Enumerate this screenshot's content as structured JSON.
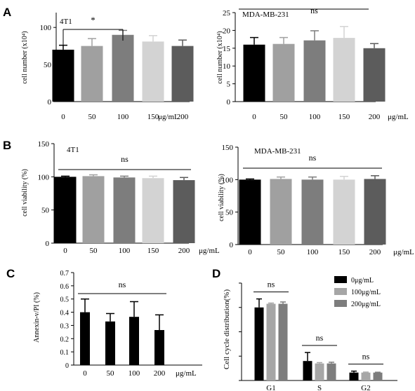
{
  "panel_letters": [
    "A",
    "B",
    "C",
    "D"
  ],
  "chart_data": [
    {
      "id": "A-4T1",
      "type": "bar",
      "panel": "A",
      "inset_label": "4T1",
      "ylabel": "cell number (x10⁴)",
      "categories": [
        "0",
        "50",
        "100",
        "150",
        "200"
      ],
      "x_unit": "μg/mL",
      "values": [
        70,
        75,
        90,
        81,
        75
      ],
      "errors": [
        6,
        10,
        6,
        8,
        8
      ],
      "colors": [
        "#000000",
        "#a0a0a0",
        "#7d7d7d",
        "#d3d3d3",
        "#5c5c5c"
      ],
      "ylim": [
        0,
        120
      ],
      "yticks": [
        0,
        50,
        100
      ],
      "significance": [
        {
          "from": 0,
          "to": 2,
          "label": "*"
        }
      ]
    },
    {
      "id": "A-MDA",
      "type": "bar",
      "panel": "A",
      "inset_label": "MDA-MB-231",
      "ylabel": "cell number (x10⁴)",
      "categories": [
        "0",
        "50",
        "100",
        "150",
        "200"
      ],
      "x_unit": "μg/mL",
      "values": [
        16,
        16.2,
        17.2,
        17.9,
        15
      ],
      "errors": [
        2,
        1.8,
        2.7,
        3.2,
        1.3
      ],
      "colors": [
        "#000000",
        "#a0a0a0",
        "#7d7d7d",
        "#d3d3d3",
        "#5c5c5c"
      ],
      "ylim": [
        0,
        25
      ],
      "yticks": [
        0,
        5,
        10,
        15,
        20,
        25
      ],
      "significance": [
        {
          "from": 0,
          "to": 4,
          "label": "ns"
        }
      ]
    },
    {
      "id": "B-4T1",
      "type": "bar",
      "panel": "B",
      "inset_label": "4T1",
      "ylabel": "cell viability (%)",
      "categories": [
        "0",
        "50",
        "100",
        "150",
        "200"
      ],
      "x_unit": "μg/mL",
      "values": [
        100,
        101,
        99,
        98,
        95
      ],
      "errors": [
        1,
        2,
        2,
        3,
        4
      ],
      "colors": [
        "#000000",
        "#a0a0a0",
        "#7d7d7d",
        "#d3d3d3",
        "#5c5c5c"
      ],
      "ylim": [
        0,
        150
      ],
      "yticks": [
        0,
        50,
        100,
        150
      ],
      "significance": [
        {
          "from": 0,
          "to": 4,
          "label": "ns"
        }
      ]
    },
    {
      "id": "B-MDA",
      "type": "bar",
      "panel": "B",
      "inset_label": "MDA-MB-231",
      "ylabel": "cell viability (%)",
      "categories": [
        "0",
        "50",
        "100",
        "150",
        "200"
      ],
      "x_unit": "μg/mL",
      "values": [
        100,
        101,
        100,
        100,
        101
      ],
      "errors": [
        1,
        3,
        4,
        5,
        5
      ],
      "colors": [
        "#000000",
        "#a0a0a0",
        "#7d7d7d",
        "#d3d3d3",
        "#5c5c5c"
      ],
      "ylim": [
        0,
        150
      ],
      "yticks": [
        0,
        50,
        100,
        150
      ],
      "significance": [
        {
          "from": 0,
          "to": 4,
          "label": "ns"
        }
      ]
    },
    {
      "id": "C",
      "type": "bar",
      "panel": "C",
      "inset_label": "",
      "ylabel": "Annexin-v/PI (%)",
      "categories": [
        "0",
        "50",
        "100",
        "200"
      ],
      "x_unit": "μg/mL",
      "values": [
        0.4,
        0.33,
        0.365,
        0.265
      ],
      "errors": [
        0.1,
        0.06,
        0.115,
        0.115
      ],
      "colors": [
        "#000000",
        "#000000",
        "#000000",
        "#000000"
      ],
      "ylim": [
        0,
        0.7
      ],
      "yticks": [
        "0",
        "0.1",
        "0.2",
        "0.3",
        "0.4",
        "0.5",
        "0.6",
        "0.7"
      ],
      "significance": [
        {
          "from": 0,
          "to": 3,
          "label": "ns"
        }
      ]
    },
    {
      "id": "D",
      "type": "bar",
      "panel": "D",
      "ylabel": "Cell cycle distribution(%)",
      "categories": [
        "G1",
        "S",
        "G2"
      ],
      "series": [
        {
          "name": "0μg/mL",
          "color": "#000000",
          "values": [
            0.6,
            0.16,
            0.065
          ],
          "errors": [
            0.07,
            0.07,
            0.012
          ]
        },
        {
          "name": "100μg/mL",
          "color": "#a6a6a6",
          "values": [
            0.63,
            0.14,
            0.065
          ],
          "errors": [
            0.006,
            0.007,
            0.004
          ]
        },
        {
          "name": "200μg/mL",
          "color": "#7d7d7d",
          "values": [
            0.63,
            0.14,
            0.065
          ],
          "errors": [
            0.015,
            0.01,
            0.003
          ]
        }
      ],
      "ylim": [
        0,
        0.8
      ],
      "legend_position": "top-right",
      "significance": [
        {
          "group": 0,
          "label": "ns"
        },
        {
          "group": 1,
          "label": "ns"
        },
        {
          "group": 2,
          "label": "ns"
        }
      ]
    }
  ]
}
